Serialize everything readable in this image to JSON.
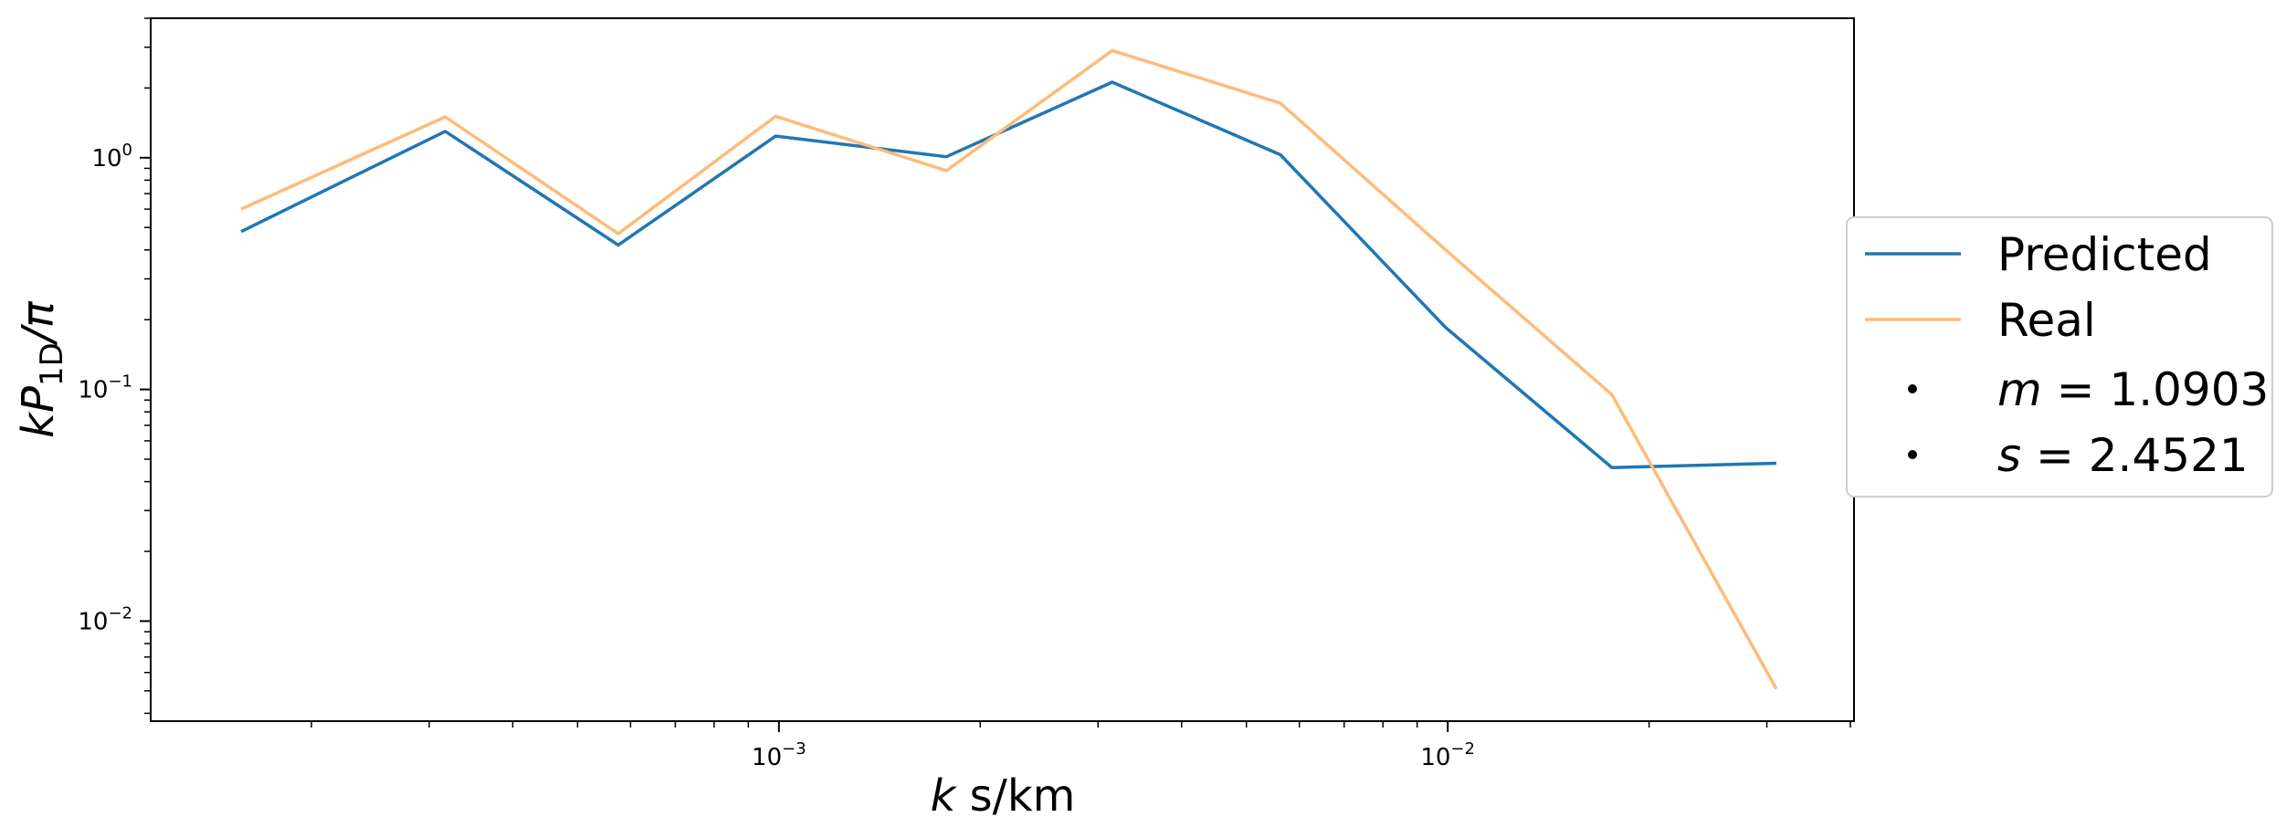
{
  "chart_data": {
    "type": "line",
    "xscale": "log",
    "yscale": "log",
    "xlim": [
      0.000115,
      0.0405
    ],
    "ylim": [
      0.0037,
      4.0
    ],
    "xlabel": {
      "italic": "k",
      "rest": " s/km"
    },
    "ylabel": {
      "main": "kP",
      "sub": "1D",
      "tail": "/π"
    },
    "x_ticks": [
      {
        "value": 0.001,
        "base": "10",
        "exp": "−3"
      },
      {
        "value": 0.01,
        "base": "10",
        "exp": "−2"
      }
    ],
    "y_ticks": [
      {
        "value": 1,
        "base": "10",
        "exp": "0"
      },
      {
        "value": 0.1,
        "base": "10",
        "exp": "−1"
      },
      {
        "value": 0.01,
        "base": "10",
        "exp": "−2"
      }
    ],
    "x": [
      0.000157,
      0.000317,
      0.000575,
      0.000989,
      0.00178,
      0.00315,
      0.00562,
      0.00993,
      0.0176,
      0.031
    ],
    "series": [
      {
        "name": "Predicted",
        "color": "#1f77b4",
        "values": [
          0.48,
          1.3,
          0.42,
          1.24,
          1.01,
          2.12,
          1.03,
          0.185,
          0.046,
          0.048
        ]
      },
      {
        "name": "Real",
        "color": "#ffbb78",
        "values": [
          0.6,
          1.5,
          0.47,
          1.51,
          0.88,
          2.9,
          1.72,
          0.4,
          0.095,
          0.0051
        ]
      }
    ],
    "legend": {
      "placement": "right, outside plot",
      "extra_entries": [
        {
          "italic": "m",
          "rest": " = 1.0903"
        },
        {
          "italic": "s",
          "rest": " = 2.4521"
        }
      ]
    },
    "grid": false
  }
}
